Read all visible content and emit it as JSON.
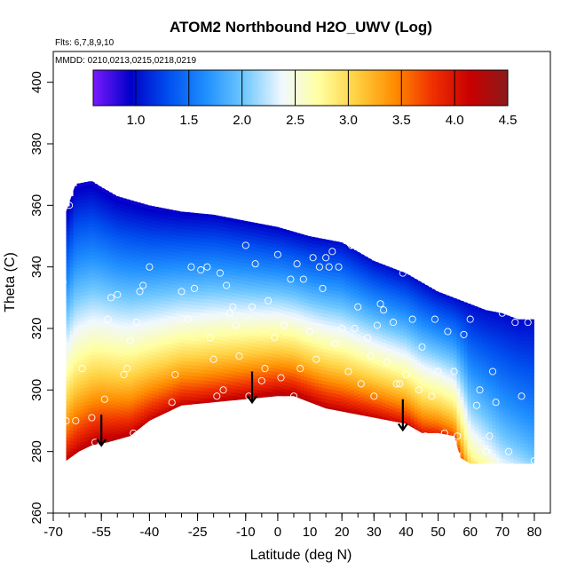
{
  "chart_data": {
    "type": "heatmap",
    "title": "ATOM2 Northbound H2O_UWV (Log)",
    "notes": {
      "flights": "Flts: 6,7,8,9,10",
      "dates": "MMDD: 0210,0213,0215,0218,0219"
    },
    "xlabel": "Latitude (deg N)",
    "ylabel": "Theta (C)",
    "xlim": [
      -70,
      85
    ],
    "ylim": [
      260,
      410
    ],
    "xticks": [
      -70,
      -55,
      -40,
      -25,
      -10,
      0,
      10,
      20,
      30,
      40,
      50,
      60,
      70,
      80
    ],
    "xtick_labels": [
      "-70",
      "-55",
      "-40",
      "-25",
      "-10",
      "0",
      "10",
      "20",
      "30",
      "40",
      "50",
      "60",
      "70",
      "80"
    ],
    "xminor_step": 5,
    "yticks": [
      260,
      280,
      300,
      320,
      340,
      360,
      380,
      400
    ],
    "ytick_labels": [
      "260",
      "280",
      "300",
      "320",
      "340",
      "360",
      "380",
      "400"
    ],
    "colorbar": {
      "range": [
        0.6,
        4.5
      ],
      "ticks": [
        1.0,
        1.5,
        2.0,
        2.5,
        3.0,
        3.5,
        4.0,
        4.5
      ],
      "tick_labels": [
        "1.0",
        "1.5",
        "2.0",
        "2.5",
        "3.0",
        "3.5",
        "4.0",
        "4.5"
      ],
      "colors": [
        "#7a1aff",
        "#0000c8",
        "#0050f0",
        "#2090ff",
        "#70c8ff",
        "#f0f8ff",
        "#ffffa0",
        "#ffd040",
        "#ff8c00",
        "#f03000",
        "#c80000",
        "#8c1a1a"
      ]
    },
    "upper_boundary": [
      [
        -66,
        358
      ],
      [
        -63,
        367
      ],
      [
        -58,
        368
      ],
      [
        -55,
        366
      ],
      [
        -50,
        363
      ],
      [
        -40,
        360
      ],
      [
        -30,
        358
      ],
      [
        -20,
        357
      ],
      [
        -10,
        355
      ],
      [
        0,
        353
      ],
      [
        10,
        350
      ],
      [
        20,
        348
      ],
      [
        30,
        342
      ],
      [
        40,
        338
      ],
      [
        50,
        332
      ],
      [
        55,
        330
      ],
      [
        60,
        328
      ],
      [
        65,
        326
      ],
      [
        70,
        325
      ],
      [
        75,
        323
      ],
      [
        80,
        323
      ]
    ],
    "lower_boundary": [
      [
        -66,
        277
      ],
      [
        -62,
        280
      ],
      [
        -58,
        282
      ],
      [
        -53,
        283
      ],
      [
        -46,
        285
      ],
      [
        -40,
        290
      ],
      [
        -30,
        295
      ],
      [
        -20,
        296
      ],
      [
        -10,
        297
      ],
      [
        0,
        298
      ],
      [
        5,
        298
      ],
      [
        10,
        296
      ],
      [
        15,
        294
      ],
      [
        20,
        293
      ],
      [
        30,
        291
      ],
      [
        40,
        289
      ],
      [
        45,
        286
      ],
      [
        50,
        286
      ],
      [
        55,
        285
      ],
      [
        57,
        278
      ],
      [
        60,
        276
      ],
      [
        70,
        276
      ],
      [
        80,
        276
      ]
    ],
    "field_profile": {
      "surface_anchors": [
        [
          -66,
          4.2
        ],
        [
          -55,
          4.35
        ],
        [
          -40,
          4.2
        ],
        [
          -25,
          4.2
        ],
        [
          -10,
          4.3
        ],
        [
          0,
          4.35
        ],
        [
          10,
          4.3
        ],
        [
          20,
          4.25
        ],
        [
          30,
          4.2
        ],
        [
          40,
          4.1
        ],
        [
          50,
          3.9
        ],
        [
          57,
          3.7
        ],
        [
          60,
          3.0
        ],
        [
          70,
          2.4
        ],
        [
          80,
          2.1
        ]
      ],
      "top_anchors": [
        [
          -66,
          0.9
        ],
        [
          -40,
          0.9
        ],
        [
          -20,
          0.95
        ],
        [
          0,
          0.95
        ],
        [
          20,
          1.0
        ],
        [
          40,
          1.0
        ],
        [
          60,
          1.0
        ],
        [
          80,
          1.0
        ]
      ],
      "exponent": 0.75
    },
    "arrows": [
      [
        -55,
        288
      ],
      [
        -8,
        302
      ],
      [
        39,
        293
      ]
    ],
    "obs_points": [
      [
        -67,
        335
      ],
      [
        -65,
        360
      ],
      [
        -66,
        290
      ],
      [
        -63,
        290
      ],
      [
        -61,
        307
      ],
      [
        -58,
        291
      ],
      [
        -57,
        283
      ],
      [
        -54,
        297
      ],
      [
        -53,
        323
      ],
      [
        -52,
        330
      ],
      [
        -50,
        331
      ],
      [
        -48,
        305
      ],
      [
        -47,
        307
      ],
      [
        -46,
        316
      ],
      [
        -45,
        286
      ],
      [
        -44,
        322
      ],
      [
        -43,
        332
      ],
      [
        -42,
        334
      ],
      [
        -40,
        340
      ],
      [
        -33,
        296
      ],
      [
        -32,
        305
      ],
      [
        -30,
        332
      ],
      [
        -28,
        323
      ],
      [
        -27,
        340
      ],
      [
        -26,
        333
      ],
      [
        -24,
        339
      ],
      [
        -22,
        340
      ],
      [
        -21,
        317
      ],
      [
        -20,
        310
      ],
      [
        -19,
        298
      ],
      [
        -18,
        338
      ],
      [
        -17,
        300
      ],
      [
        -16,
        334
      ],
      [
        -15,
        325
      ],
      [
        -14,
        327
      ],
      [
        -13,
        321
      ],
      [
        -12,
        311
      ],
      [
        -10,
        347
      ],
      [
        -9,
        298
      ],
      [
        -8,
        327
      ],
      [
        -7,
        341
      ],
      [
        -5,
        303
      ],
      [
        -4,
        307
      ],
      [
        -3,
        329
      ],
      [
        -1,
        317
      ],
      [
        0,
        344
      ],
      [
        1,
        304
      ],
      [
        2,
        321
      ],
      [
        4,
        336
      ],
      [
        5,
        298
      ],
      [
        6,
        341
      ],
      [
        7,
        307
      ],
      [
        8,
        336
      ],
      [
        10,
        319
      ],
      [
        11,
        343
      ],
      [
        12,
        310
      ],
      [
        13,
        340
      ],
      [
        14,
        333
      ],
      [
        15,
        343
      ],
      [
        16,
        340
      ],
      [
        17,
        345
      ],
      [
        18,
        315
      ],
      [
        19,
        340
      ],
      [
        20,
        320
      ],
      [
        21,
        289
      ],
      [
        22,
        306
      ],
      [
        23,
        347
      ],
      [
        24,
        320
      ],
      [
        25,
        327
      ],
      [
        26,
        302
      ],
      [
        28,
        317
      ],
      [
        29,
        311
      ],
      [
        30,
        298
      ],
      [
        31,
        321
      ],
      [
        32,
        328
      ],
      [
        33,
        326
      ],
      [
        34,
        309
      ],
      [
        36,
        322
      ],
      [
        37,
        302
      ],
      [
        38,
        302
      ],
      [
        39,
        338
      ],
      [
        40,
        305
      ],
      [
        42,
        323
      ],
      [
        44,
        300
      ],
      [
        45,
        314
      ],
      [
        46,
        285
      ],
      [
        48,
        298
      ],
      [
        49,
        323
      ],
      [
        50,
        306
      ],
      [
        52,
        286
      ],
      [
        53,
        319
      ],
      [
        55,
        306
      ],
      [
        56,
        285
      ],
      [
        58,
        318
      ],
      [
        60,
        323
      ],
      [
        62,
        295
      ],
      [
        63,
        300
      ],
      [
        65,
        280
      ],
      [
        66,
        285
      ],
      [
        67,
        306
      ],
      [
        68,
        296
      ],
      [
        70,
        325
      ],
      [
        72,
        280
      ],
      [
        74,
        322
      ],
      [
        76,
        298
      ],
      [
        78,
        322
      ],
      [
        80,
        277
      ]
    ]
  }
}
